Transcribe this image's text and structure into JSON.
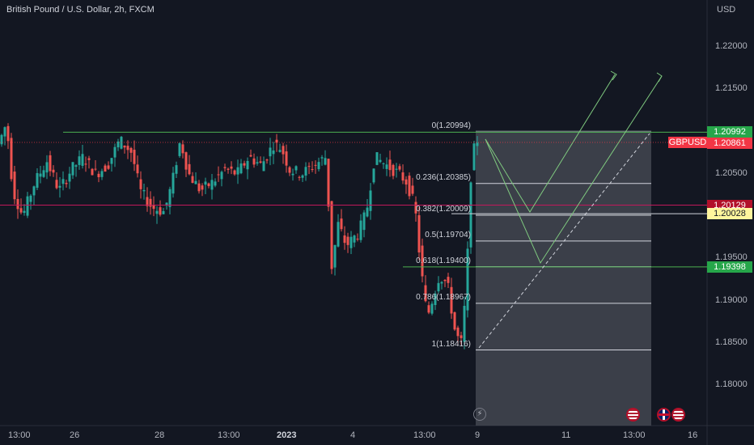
{
  "header": {
    "symbol_title": "British Pound / U.S. Dollar, 2h, FXCM",
    "currency": "USD"
  },
  "price_axis": {
    "ticks": [
      "1.22000",
      "1.21500",
      "1.21000",
      "1.20500",
      "1.20000",
      "1.19500",
      "1.19000",
      "1.18500",
      "1.18000"
    ],
    "tags": [
      {
        "value": "1.20992",
        "color": "#26a64a",
        "text_color": "#ffffff"
      },
      {
        "value": "1.20861",
        "color": "#f23645",
        "text_color": "#ffffff"
      },
      {
        "value": "1.20129",
        "color": "#b2102a",
        "text_color": "#ffffff"
      },
      {
        "value": "1.20028",
        "color": "#fff59d",
        "text_color": "#131722"
      },
      {
        "value": "1.19398",
        "color": "#26a64a",
        "text_color": "#ffffff"
      }
    ],
    "symbol_tag": "GBPUSD"
  },
  "time_axis": {
    "labels": [
      "13:00",
      "26",
      "28",
      "13:00",
      "2023",
      "4",
      "13:00",
      "9",
      "11",
      "13:00",
      "16"
    ]
  },
  "fib_levels": [
    "0(1.20994)",
    "0.236(1.20385)",
    "0.382(1.20009)",
    "0.5(1.19704)",
    "0.618(1.19400)",
    "0.786(1.18967)",
    "1(1.18416)"
  ],
  "chart_data": {
    "type": "candlestick",
    "symbol": "GBPUSD",
    "timeframe": "2h",
    "ylim": [
      1.178,
      1.225
    ],
    "last_price": 1.20861,
    "horizontal_lines": [
      1.20992,
      1.20129,
      1.20028,
      1.19398
    ],
    "fib_retracement": {
      "high": 1.20994,
      "low": 1.18416,
      "levels": [
        0,
        0.236,
        0.382,
        0.5,
        0.618,
        0.786,
        1
      ]
    }
  },
  "icons": [
    "lightning-icon",
    "us-flag-icon",
    "uk-flag-icon",
    "us-flag-icon"
  ],
  "colors": {
    "up": "#26a69a",
    "down": "#ef5350",
    "background": "#131722"
  }
}
